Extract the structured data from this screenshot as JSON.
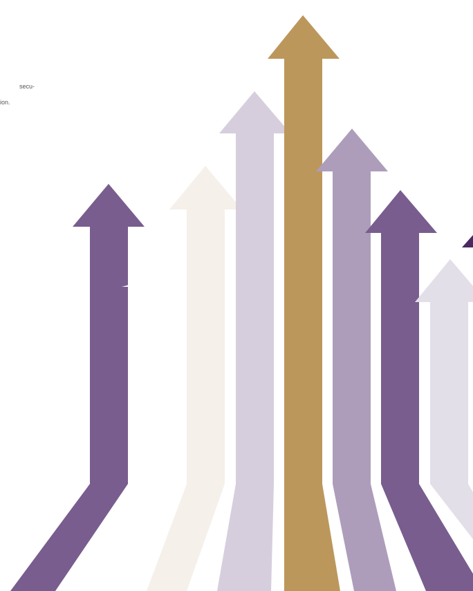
{
  "text": {
    "lines": [
      "secu-",
      "ion."
    ]
  }
}
